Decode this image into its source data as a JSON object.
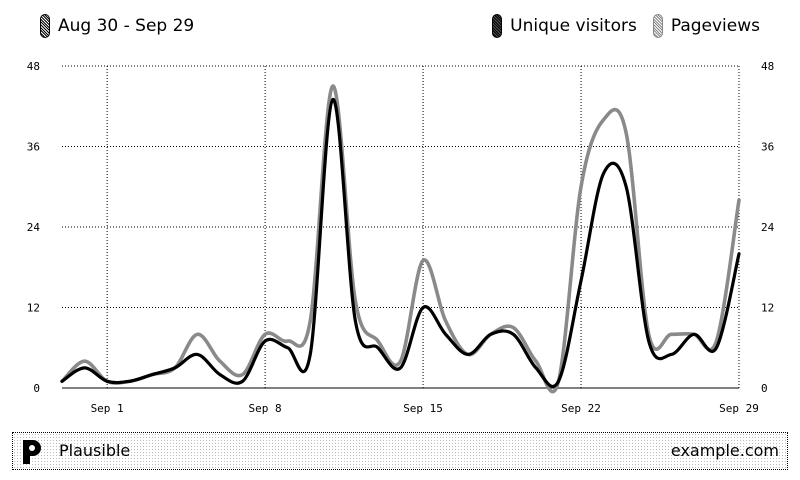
{
  "header": {
    "date_range": "Aug 30 - Sep 29"
  },
  "footer": {
    "brand": "Plausible",
    "site": "example.com"
  },
  "colors": {
    "unique_visitors": "#000000",
    "pageviews": "#8a8a8a"
  },
  "chart_data": {
    "type": "line",
    "title": "",
    "xlabel": "",
    "ylabel": "",
    "ylim": [
      0,
      48
    ],
    "yticks": [
      "0",
      "12",
      "24",
      "36",
      "48"
    ],
    "grid": true,
    "legend": "top-right",
    "x": [
      "Aug 30",
      "Aug 31",
      "Sep 1",
      "Sep 2",
      "Sep 3",
      "Sep 4",
      "Sep 5",
      "Sep 6",
      "Sep 7",
      "Sep 8",
      "Sep 9",
      "Sep 10",
      "Sep 11",
      "Sep 12",
      "Sep 13",
      "Sep 14",
      "Sep 15",
      "Sep 16",
      "Sep 17",
      "Sep 18",
      "Sep 19",
      "Sep 20",
      "Sep 21",
      "Sep 22",
      "Sep 23",
      "Sep 24",
      "Sep 25",
      "Sep 26",
      "Sep 27",
      "Sep 28",
      "Sep 29"
    ],
    "xtick_labels": [
      {
        "label": "Sep 1",
        "index": 2
      },
      {
        "label": "Sep 8",
        "index": 9
      },
      {
        "label": "Sep 15",
        "index": 16
      },
      {
        "label": "Sep 22",
        "index": 23
      },
      {
        "label": "Sep 29",
        "index": 30
      }
    ],
    "series": [
      {
        "name": "Unique visitors",
        "values": [
          1,
          3,
          1,
          1,
          2,
          3,
          5,
          2,
          1,
          7,
          6,
          5,
          43,
          10,
          6,
          3,
          12,
          8,
          5,
          8,
          8,
          3,
          1,
          16,
          32,
          30,
          7,
          5,
          8,
          6,
          20
        ]
      },
      {
        "name": "Pageviews",
        "values": [
          1,
          4,
          1,
          1,
          2,
          3,
          8,
          4,
          2,
          8,
          7,
          10,
          45,
          13,
          7,
          4,
          19,
          10,
          5,
          8,
          9,
          4,
          1,
          30,
          40,
          38,
          8,
          8,
          8,
          7,
          28
        ]
      }
    ]
  }
}
